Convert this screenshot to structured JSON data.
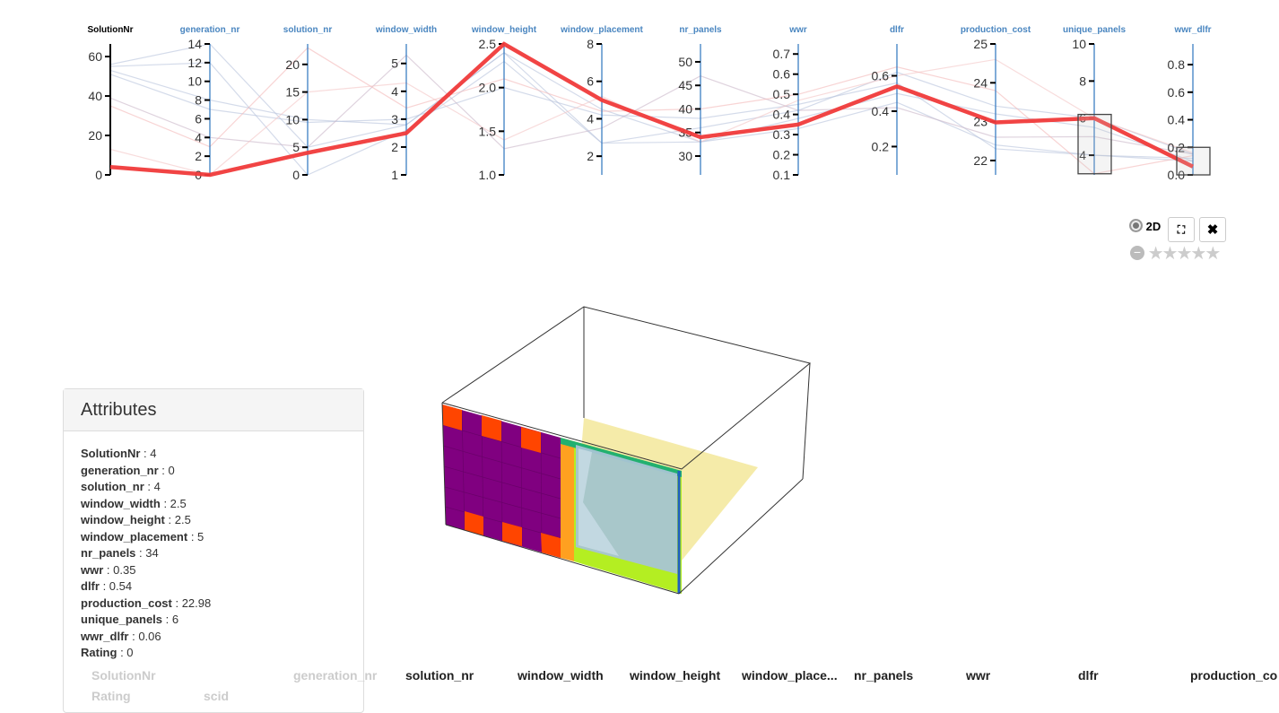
{
  "chart_data": {
    "type": "parallel-coordinates",
    "axes": [
      {
        "name": "SolutionNr",
        "range": [
          0,
          66.4
        ],
        "ticks": [
          0,
          20,
          40,
          60
        ]
      },
      {
        "name": "generation_nr",
        "range": [
          0,
          14
        ],
        "ticks": [
          0,
          2,
          4,
          6,
          8,
          10,
          12,
          14
        ]
      },
      {
        "name": "solution_nr",
        "range": [
          0,
          23.7
        ],
        "ticks": [
          0,
          5,
          10,
          15,
          20
        ]
      },
      {
        "name": "window_width",
        "range": [
          1,
          5.7
        ],
        "ticks": [
          1,
          2,
          3,
          4,
          5
        ]
      },
      {
        "name": "window_height",
        "range": [
          1,
          2.5
        ],
        "ticks": [
          "1.0",
          "1.5",
          "2.0",
          "2.5"
        ]
      },
      {
        "name": "window_placement",
        "range": [
          1,
          8
        ],
        "ticks": [
          2,
          4,
          6,
          8
        ]
      },
      {
        "name": "nr_panels",
        "range": [
          26,
          53.8
        ],
        "ticks": [
          30,
          35,
          40,
          45,
          50
        ]
      },
      {
        "name": "wwr",
        "range": [
          0.1,
          0.75
        ],
        "ticks": [
          "0.1",
          "0.2",
          "0.3",
          "0.4",
          "0.5",
          "0.6",
          "0.7"
        ]
      },
      {
        "name": "dlfr",
        "range": [
          0.04,
          0.78
        ],
        "ticks": [
          "0.2",
          "0.4",
          "0.6"
        ]
      },
      {
        "name": "production_cost",
        "range": [
          21.63,
          25
        ],
        "ticks": [
          22,
          23,
          24,
          25
        ]
      },
      {
        "name": "unique_panels",
        "range": [
          2.94,
          10
        ],
        "ticks": [
          4,
          6,
          8,
          10
        ]
      },
      {
        "name": "wwr_dlfr",
        "range": [
          0,
          0.95
        ],
        "ticks": [
          "0.0",
          "0.2",
          "0.4",
          "0.6",
          "0.8"
        ]
      }
    ],
    "brushes": [
      {
        "axis": "unique_panels",
        "range": [
          3,
          6.2
        ]
      },
      {
        "axis": "wwr_dlfr",
        "range": [
          0,
          0.2
        ]
      }
    ],
    "highlighted": {
      "values": [
        4,
        0,
        4,
        2.5,
        2.5,
        5,
        34,
        0.35,
        0.54,
        22.98,
        6,
        0.06
      ],
      "color": "#f03a3a"
    },
    "background_lines": [
      {
        "values": [
          56,
          14,
          5,
          2.8,
          2.4,
          4.5,
          33,
          0.38,
          0.5,
          23.2,
          5.5,
          0.1
        ],
        "color": "#b8c3dc"
      },
      {
        "values": [
          53,
          8,
          10,
          2.8,
          2.4,
          2.7,
          36,
          0.42,
          0.62,
          23.4,
          6,
          0.15
        ],
        "color": "#b8c3dc"
      },
      {
        "values": [
          51,
          7,
          9.5,
          3,
          2.0,
          4.2,
          38,
          0.45,
          0.56,
          22.3,
          4,
          0.12
        ],
        "color": "#b8c3dc"
      },
      {
        "values": [
          55,
          12,
          0,
          2.6,
          2.3,
          2.7,
          33,
          0.33,
          0.45,
          22.4,
          4,
          0.1
        ],
        "color": "#b8c3dc"
      },
      {
        "values": [
          39,
          4,
          5,
          5.3,
          1.3,
          3.5,
          47,
          0.42,
          0.42,
          22.6,
          5,
          0.15
        ],
        "color": "#c9b6c8"
      },
      {
        "values": [
          35,
          3,
          23,
          3.4,
          2.1,
          4.4,
          40,
          0.5,
          0.65,
          23.8,
          3,
          0.14
        ],
        "color": "#f4b8b8"
      },
      {
        "values": [
          13,
          0,
          15,
          4.3,
          1.4,
          5.2,
          33,
          0.47,
          0.6,
          24.6,
          6,
          0.16
        ],
        "color": "#f4c4c4"
      }
    ]
  },
  "controls": {
    "mode_label": "2D",
    "rating_stars": 5,
    "rating_value": 0
  },
  "attributes": {
    "title": "Attributes",
    "rows": [
      {
        "key": "SolutionNr",
        "value": "4"
      },
      {
        "key": "generation_nr",
        "value": "0"
      },
      {
        "key": "solution_nr",
        "value": "4"
      },
      {
        "key": "window_width",
        "value": "2.5"
      },
      {
        "key": "window_height",
        "value": "2.5"
      },
      {
        "key": "window_placement",
        "value": "5"
      },
      {
        "key": "nr_panels",
        "value": "34"
      },
      {
        "key": "wwr",
        "value": "0.35"
      },
      {
        "key": "dlfr",
        "value": "0.54"
      },
      {
        "key": "production_cost",
        "value": "22.98"
      },
      {
        "key": "unique_panels",
        "value": "6"
      },
      {
        "key": "wwr_dlfr",
        "value": "0.06"
      },
      {
        "key": "Rating",
        "value": "0"
      }
    ]
  },
  "table": {
    "headers": [
      "SolutionNr",
      "generation_nr",
      "solution_nr",
      "window_width",
      "window_height",
      "window_place...",
      "nr_panels",
      "wwr",
      "dlfr",
      "production_co"
    ],
    "second_row": [
      "Rating",
      "scid"
    ]
  }
}
